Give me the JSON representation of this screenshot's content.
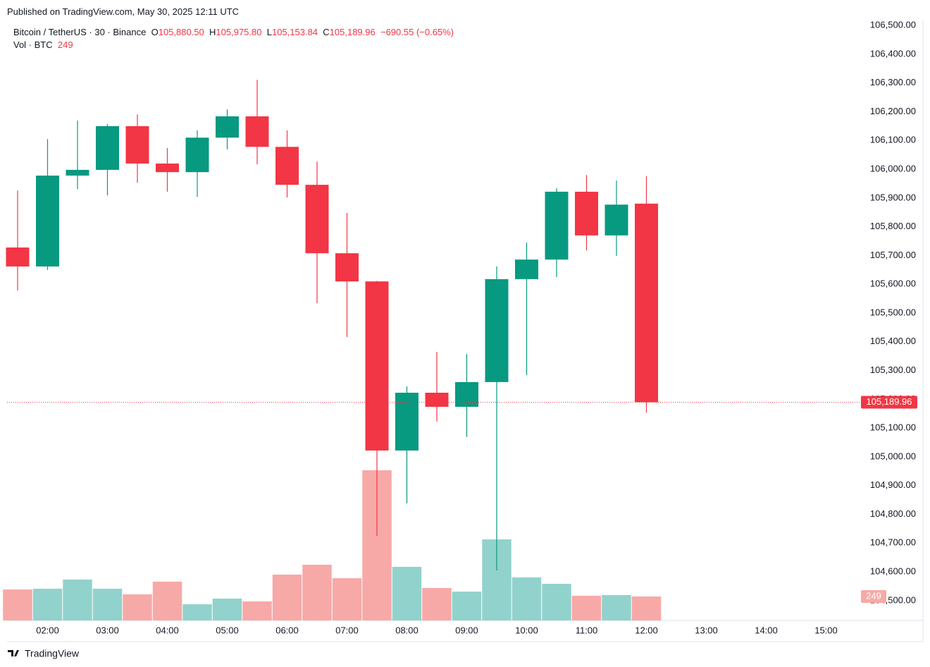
{
  "chart_data": {
    "type": "candlestick",
    "publisher": "Published on TradingView.com, May 30, 2025 12:11 UTC",
    "symbol": "Bitcoin / TetherUS · 30 · Binance",
    "ohlc_legend": [
      {
        "key": "O",
        "label": "105,880.50"
      },
      {
        "key": "H",
        "label": "105,975.80"
      },
      {
        "key": "L",
        "label": "105,153.84"
      },
      {
        "key": "C",
        "label": "105,189.96"
      }
    ],
    "change_label": "−690.55 (−0.65%)",
    "volume_title": "Vol · BTC",
    "volume_label": "249",
    "brand": "TradingView",
    "up_color": "#089981",
    "down_color": "#f23645",
    "volume_up_color": "#92d2cc",
    "volume_down_color": "#f7a9a7",
    "categories": [
      null,
      "02:00",
      null,
      "03:00",
      null,
      "04:00",
      null,
      "05:00",
      null,
      "06:00",
      null,
      "07:00",
      null,
      "08:00",
      null,
      "09:00",
      null,
      "10:00",
      null,
      "11:00",
      null,
      "12:00",
      null,
      "13:00",
      null,
      "14:00",
      null,
      "15:00"
    ],
    "open": [
      105728,
      105662,
      105978,
      105998,
      106150,
      106020,
      105990,
      106110,
      106184,
      106078,
      105946,
      105708,
      105610,
      105022,
      105223,
      105174,
      105260,
      105618,
      105686,
      105922,
      105770,
      105880.5,
      null,
      null,
      null,
      null,
      null,
      null
    ],
    "high": [
      105926,
      106105,
      106169,
      106157,
      106191,
      106074,
      106135,
      106208,
      106311,
      106135,
      106027,
      105848,
      105612,
      105245,
      105365,
      105358,
      105662,
      105745,
      105934,
      105980,
      105961,
      105975.8,
      null,
      null,
      null,
      null,
      null,
      null
    ],
    "low": [
      105578,
      105650,
      105931,
      105909,
      105953,
      105922,
      105904,
      106069,
      106017,
      105902,
      105534,
      105417,
      104725,
      104838,
      105123,
      105069,
      104605,
      105284,
      105625,
      105718,
      105699,
      105153.84,
      null,
      null,
      null,
      null,
      null,
      null
    ],
    "close": [
      105662,
      105978,
      105998,
      106150,
      106020,
      105990,
      106110,
      106184,
      106078,
      105946,
      105708,
      105610,
      105022,
      105223,
      105174,
      105260,
      105618,
      105686,
      105922,
      105770,
      105877,
      105189.96,
      null,
      null,
      null,
      null,
      null,
      null
    ],
    "volume": [
      322,
      330,
      425,
      330,
      271,
      403,
      168,
      227,
      198,
      476,
      579,
      439,
      1560,
      557,
      337,
      300,
      842,
      447,
      381,
      256,
      264,
      249,
      null,
      null,
      null,
      null,
      null,
      null
    ],
    "volume_ylim": [
      0,
      1600
    ],
    "ylim": [
      104431,
      106520
    ],
    "yticks": [
      {
        "value": 106500,
        "label": "106,500.00"
      },
      {
        "value": 106400,
        "label": "106,400.00"
      },
      {
        "value": 106300,
        "label": "106,300.00"
      },
      {
        "value": 106200,
        "label": "106,200.00"
      },
      {
        "value": 106100,
        "label": "106,100.00"
      },
      {
        "value": 106000,
        "label": "106,000.00"
      },
      {
        "value": 105900,
        "label": "105,900.00"
      },
      {
        "value": 105800,
        "label": "105,800.00"
      },
      {
        "value": 105700,
        "label": "105,700.00"
      },
      {
        "value": 105600,
        "label": "105,600.00"
      },
      {
        "value": 105500,
        "label": "105,500.00"
      },
      {
        "value": 105400,
        "label": "105,400.00"
      },
      {
        "value": 105300,
        "label": "105,300.00"
      },
      {
        "value": 105200,
        "label": "105,200.00"
      },
      {
        "value": 105100,
        "label": "105,100.00"
      },
      {
        "value": 105000,
        "label": "105,000.00"
      },
      {
        "value": 104900,
        "label": "104,900.00"
      },
      {
        "value": 104800,
        "label": "104,800.00"
      },
      {
        "value": 104700,
        "label": "104,700.00"
      },
      {
        "value": 104600,
        "label": "104,600.00"
      },
      {
        "value": 104500,
        "label": "104,500.00"
      }
    ],
    "last_price": {
      "value": 105189.96,
      "label": "105,189.96"
    }
  }
}
